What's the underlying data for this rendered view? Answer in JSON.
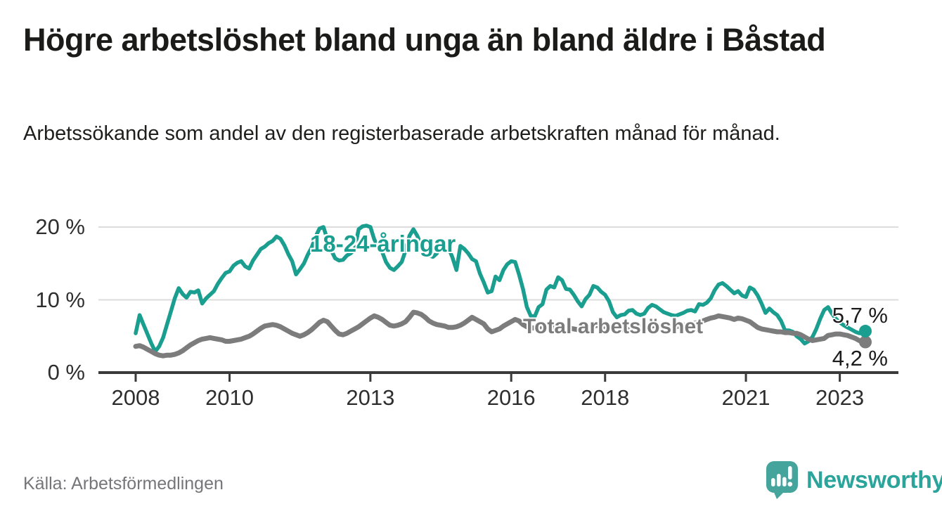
{
  "header": {
    "title": "Högre arbetslöshet bland unga än bland äldre i Båstad",
    "subtitle": "Arbetssökande som andel av den registerbaserade arbetskraften månad för månad."
  },
  "footer": {
    "source": "Källa: Arbetsförmedlingen",
    "brand": "Newsworthy"
  },
  "colors": {
    "youth_teal": "#1a9e8f",
    "total_gray": "#7c7c7c",
    "grid": "#dcdcdc",
    "axis": "#3a3a3a",
    "tick_text": "#2e2e2e",
    "value_label_text": "#1b1b1b",
    "source_text": "#76767a",
    "brand_teal": "#45a49b",
    "brand_text": "#2ba49b"
  },
  "chart_data": {
    "type": "line",
    "title": "Högre arbetslöshet bland unga än bland äldre i Båstad",
    "subtitle": "Arbetssökande som andel av den registerbaserade arbetskraften månad för månad.",
    "unit": "%",
    "frequency": "monthly",
    "x_start": {
      "year": 2008,
      "month": 1
    },
    "x_end": {
      "year": 2023,
      "month": 7
    },
    "grid": "horizontal-only",
    "legend_position": "inline-labels",
    "ylim": [
      0,
      21
    ],
    "y_ticks": [
      {
        "value": 20,
        "label": "20 %"
      },
      {
        "value": 10,
        "label": "10 %"
      },
      {
        "value": 0,
        "label": "0 %"
      }
    ],
    "x_ticks": [
      {
        "year": 2008,
        "label": "2008"
      },
      {
        "year": 2010,
        "label": "2010"
      },
      {
        "year": 2013,
        "label": "2013"
      },
      {
        "year": 2016,
        "label": "2016"
      },
      {
        "year": 2018,
        "label": "2018"
      },
      {
        "year": 2021,
        "label": "2021"
      },
      {
        "year": 2023,
        "label": "2023"
      }
    ],
    "series": [
      {
        "name": "18-24-åringar",
        "color": "#1a9e8f",
        "stroke_width": 5.5,
        "end_label": "5,7 %",
        "end_value": 5.7,
        "values": [
          5.4,
          7.9,
          6.6,
          5.3,
          4.0,
          2.9,
          3.6,
          4.8,
          6.6,
          8.4,
          10.2,
          11.6,
          10.8,
          10.3,
          11.1,
          11.0,
          11.3,
          9.5,
          10.2,
          10.7,
          11.2,
          12.2,
          13.0,
          13.7,
          13.9,
          14.7,
          15.1,
          15.3,
          14.6,
          14.3,
          15.4,
          16.2,
          17.0,
          17.3,
          17.8,
          18.1,
          18.7,
          18.4,
          17.5,
          16.3,
          15.3,
          13.5,
          14.2,
          15.0,
          16.2,
          17.2,
          18.7,
          19.8,
          20.0,
          18.3,
          16.8,
          15.7,
          15.4,
          15.5,
          16.1,
          16.4,
          17.0,
          19.7,
          20.1,
          20.2,
          20.0,
          18.3,
          17.3,
          16.6,
          15.2,
          14.4,
          14.1,
          14.6,
          15.2,
          16.8,
          18.8,
          19.7,
          18.8,
          17.5,
          17.0,
          16.1,
          15.9,
          16.4,
          17.6,
          17.4,
          17.1,
          15.8,
          14.1,
          17.4,
          17.0,
          16.4,
          15.6,
          15.3,
          13.6,
          12.4,
          11.0,
          11.2,
          13.2,
          12.7,
          14.1,
          14.9,
          15.3,
          15.2,
          13.5,
          11.5,
          9.0,
          7.8,
          7.7,
          9.0,
          9.4,
          11.4,
          11.9,
          11.7,
          13.1,
          12.7,
          11.5,
          11.4,
          10.7,
          9.8,
          9.1,
          10.1,
          10.7,
          11.9,
          11.7,
          11.1,
          10.7,
          9.8,
          8.3,
          7.6,
          7.9,
          8.0,
          8.5,
          8.6,
          8.1,
          7.9,
          8.1,
          8.9,
          9.3,
          9.1,
          8.7,
          8.3,
          8.1,
          7.9,
          7.8,
          8.0,
          8.2,
          8.5,
          8.6,
          8.4,
          9.4,
          9.3,
          9.6,
          10.2,
          11.3,
          12.1,
          12.3,
          11.9,
          11.4,
          10.9,
          11.2,
          10.6,
          10.4,
          11.7,
          11.4,
          10.6,
          9.5,
          8.2,
          8.8,
          8.3,
          7.9,
          7.1,
          5.8,
          5.8,
          5.6,
          5.0,
          4.6,
          4.0,
          4.3,
          4.9,
          6.0,
          7.4,
          8.6,
          9.0,
          8.1,
          7.4,
          6.9,
          6.5,
          6.2,
          5.9,
          5.6,
          5.4,
          5.7
        ]
      },
      {
        "name": "Total arbetslöshet",
        "color": "#7c7c7c",
        "stroke_width": 7,
        "end_label": "4,2 %",
        "end_value": 4.2,
        "values": [
          3.6,
          3.7,
          3.5,
          3.2,
          2.9,
          2.6,
          2.4,
          2.3,
          2.4,
          2.4,
          2.5,
          2.7,
          3.0,
          3.4,
          3.8,
          4.1,
          4.4,
          4.6,
          4.7,
          4.8,
          4.7,
          4.6,
          4.5,
          4.3,
          4.3,
          4.4,
          4.5,
          4.6,
          4.8,
          5.0,
          5.3,
          5.7,
          6.1,
          6.4,
          6.5,
          6.6,
          6.5,
          6.3,
          6.0,
          5.7,
          5.4,
          5.2,
          5.0,
          5.2,
          5.5,
          5.9,
          6.4,
          6.9,
          7.2,
          7.0,
          6.4,
          5.8,
          5.3,
          5.2,
          5.4,
          5.7,
          6.0,
          6.3,
          6.7,
          7.1,
          7.5,
          7.8,
          7.6,
          7.3,
          6.9,
          6.5,
          6.4,
          6.5,
          6.7,
          7.0,
          7.6,
          8.3,
          8.2,
          8.0,
          7.6,
          7.1,
          6.8,
          6.6,
          6.5,
          6.4,
          6.2,
          6.2,
          6.3,
          6.5,
          6.8,
          7.2,
          7.6,
          7.3,
          7.0,
          6.7,
          6.0,
          5.6,
          5.8,
          6.0,
          6.4,
          6.7,
          7.0,
          7.3,
          7.1,
          6.6,
          6.3,
          6.2,
          6.1,
          6.1,
          6.2,
          6.3,
          6.3,
          6.2,
          6.4,
          6.3,
          6.2,
          6.1,
          6.0,
          5.9,
          5.9,
          6.0,
          6.2,
          6.4,
          6.5,
          6.4,
          6.3,
          6.2,
          6.0,
          5.9,
          5.8,
          5.8,
          5.9,
          6.0,
          6.2,
          6.3,
          6.4,
          6.5,
          6.4,
          6.5,
          6.4,
          6.3,
          6.3,
          6.2,
          6.3,
          6.4,
          6.5,
          6.6,
          6.7,
          6.8,
          6.9,
          7.1,
          7.3,
          7.5,
          7.6,
          7.8,
          7.7,
          7.6,
          7.5,
          7.3,
          7.5,
          7.4,
          7.2,
          7.0,
          6.6,
          6.2,
          6.0,
          5.9,
          5.8,
          5.7,
          5.6,
          5.6,
          5.5,
          5.5,
          5.4,
          5.4,
          5.2,
          4.9,
          4.6,
          4.4,
          4.5,
          4.6,
          4.7,
          5.1,
          5.2,
          5.3,
          5.3,
          5.2,
          5.1,
          4.9,
          4.7,
          4.4,
          4.2
        ]
      }
    ]
  }
}
